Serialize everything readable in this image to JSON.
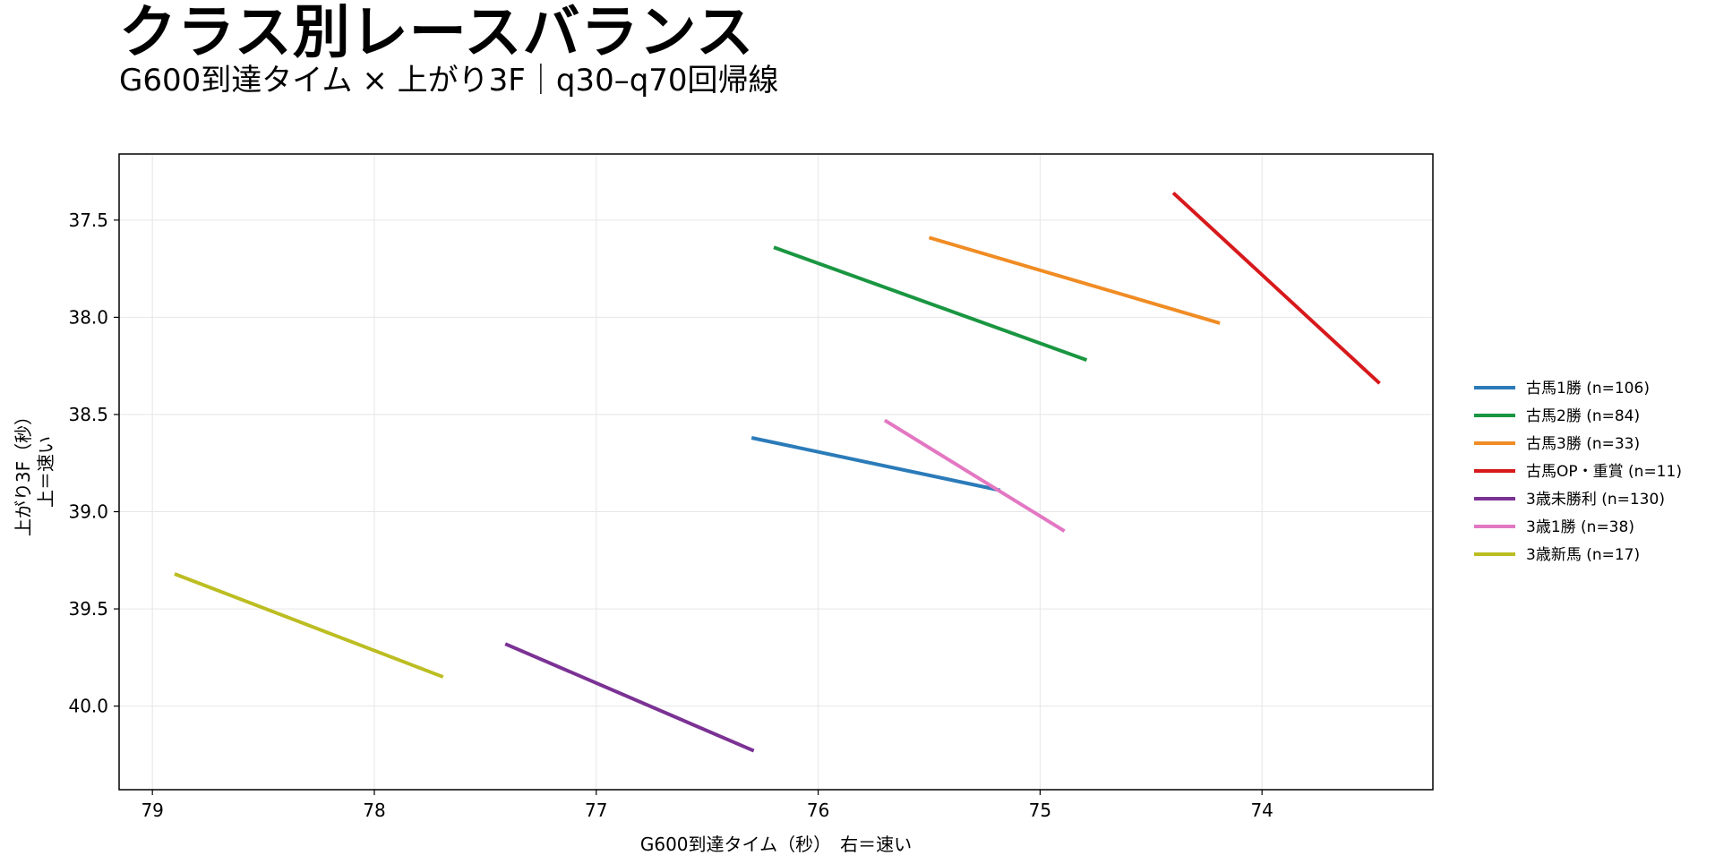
{
  "title": "クラス別レースバランス",
  "subtitle": "G600到達タイム × 上がり3F｜q30–q70回帰線",
  "chart_data": {
    "type": "line",
    "xlabel": "G600到達タイム（秒）　右＝速い",
    "ylabel_line1": "上がり3F（秒）",
    "ylabel_line2": "上＝速い",
    "x_inverted": true,
    "y_inverted": true,
    "xlim": [
      79.15,
      73.23
    ],
    "ylim": [
      40.43,
      37.16
    ],
    "x_ticks": [
      79,
      78,
      77,
      76,
      75,
      74
    ],
    "x_tick_labels": [
      "79",
      "78",
      "77",
      "76",
      "75",
      "74"
    ],
    "y_ticks": [
      37.5,
      38.0,
      38.5,
      39.0,
      39.5,
      40.0
    ],
    "y_tick_labels": [
      "37.5",
      "38.0",
      "38.5",
      "39.0",
      "39.5",
      "40.0"
    ],
    "grid": true,
    "legend_position": "right",
    "series": [
      {
        "name": "古馬1勝  (n=106)",
        "color": "#2b7bb9",
        "x": [
          76.3,
          75.18
        ],
        "y": [
          38.62,
          38.89
        ]
      },
      {
        "name": "古馬2勝  (n=84)",
        "color": "#1a9641",
        "x": [
          76.2,
          74.79
        ],
        "y": [
          37.64,
          38.22
        ]
      },
      {
        "name": "古馬3勝  (n=33)",
        "color": "#f08c24",
        "x": [
          75.5,
          74.19
        ],
        "y": [
          37.59,
          38.03
        ]
      },
      {
        "name": "古馬OP・重賞  (n=11)",
        "color": "#d7191c",
        "x": [
          74.4,
          73.47
        ],
        "y": [
          37.36,
          38.34
        ]
      },
      {
        "name": "3歳未勝利  (n=130)",
        "color": "#7b3294",
        "x": [
          77.41,
          76.29
        ],
        "y": [
          39.68,
          40.23
        ]
      },
      {
        "name": "3歳1勝  (n=38)",
        "color": "#e377c2",
        "x": [
          75.7,
          74.89
        ],
        "y": [
          38.53,
          39.1
        ]
      },
      {
        "name": "3歳新馬  (n=17)",
        "color": "#bcbd22",
        "x": [
          78.9,
          77.69
        ],
        "y": [
          39.32,
          39.85
        ]
      }
    ]
  }
}
